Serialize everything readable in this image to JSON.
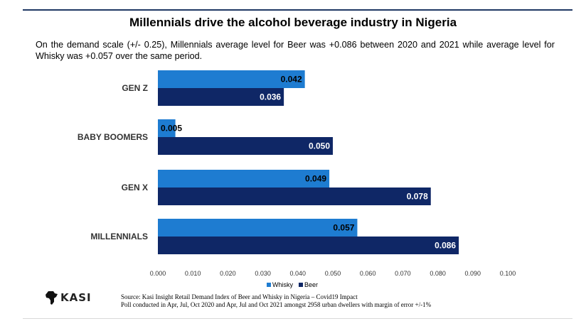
{
  "header": {
    "title": "Millennials drive the alcohol beverage industry in Nigeria",
    "subtitle": "On the demand scale (+/- 0.25), Millennials average level for Beer was +0.086 between 2020 and 2021 while average level for Whisky  was +0.057 over the same period."
  },
  "chart_data": {
    "type": "bar",
    "orientation": "horizontal",
    "categories": [
      "GEN Z",
      "BABY BOOMERS",
      "GEN X",
      "MILLENNIALS"
    ],
    "series": [
      {
        "name": "Whisky",
        "color": "#1e7cd1",
        "values": [
          0.042,
          0.005,
          0.049,
          0.057
        ],
        "labels": [
          "0.042",
          "0.005",
          "0.049",
          "0.057"
        ]
      },
      {
        "name": "Beer",
        "color": "#0f2766",
        "values": [
          0.036,
          0.05,
          0.078,
          0.086
        ],
        "labels": [
          "0.036",
          "0.050",
          "0.078",
          "0.086"
        ]
      }
    ],
    "xlim": [
      0,
      0.1
    ],
    "xticks": [
      "0.000",
      "0.010",
      "0.020",
      "0.030",
      "0.040",
      "0.050",
      "0.060",
      "0.070",
      "0.080",
      "0.090",
      "0.100"
    ],
    "grid": false,
    "legend_position": "bottom"
  },
  "legend": {
    "whisky": "Whisky",
    "beer": "Beer"
  },
  "logo": {
    "text": "KASI",
    "icon": "africa-map-icon"
  },
  "source": {
    "line1": "Source: Kasi Insight  Retail Demand Index of Beer and Whisky in Nigeria  – Covid19 Impact",
    "line2": "Poll conducted in Apr, Jul, Oct 2020 and Apr, Jul and Oct 2021 amongst 2958 urban dwellers with margin of error +/-1%"
  }
}
